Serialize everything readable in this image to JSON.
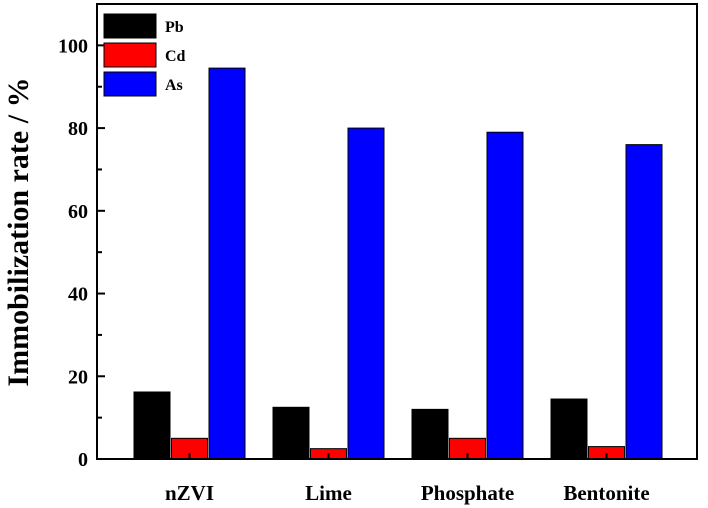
{
  "chart_data": {
    "type": "bar",
    "categories": [
      "nZVI",
      "Lime",
      "Phosphate",
      "Bentonite"
    ],
    "series": [
      {
        "name": "Pb",
        "color": "#000000",
        "values": [
          16.2,
          12.5,
          12.0,
          14.5
        ]
      },
      {
        "name": "Cd",
        "color": "#ff0000",
        "values": [
          5.0,
          2.5,
          5.0,
          3.0
        ]
      },
      {
        "name": "As",
        "color": "#0000ff",
        "values": [
          94.5,
          80.0,
          79.0,
          76.0
        ]
      }
    ],
    "ylabel": "Immobilization rate / %",
    "ylim": [
      0,
      110
    ],
    "yticks": [
      "0",
      "20",
      "40",
      "60",
      "80",
      "100"
    ],
    "grid": false,
    "legend_position": "top-left"
  }
}
